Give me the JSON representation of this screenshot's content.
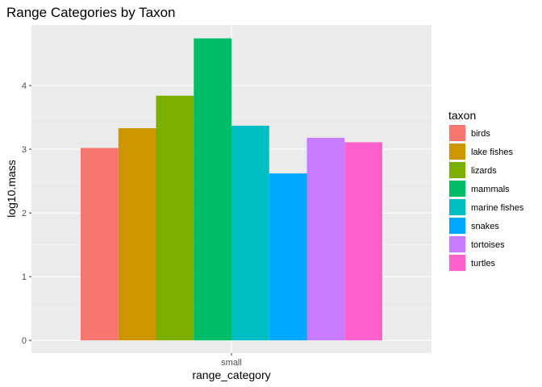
{
  "chart_data": {
    "type": "bar",
    "title": "Range Categories by Taxon",
    "xlabel": "range_category",
    "ylabel": "log10.mass",
    "categories": [
      "small"
    ],
    "ylim": [
      -0.2,
      4.95
    ],
    "yticks": [
      0,
      1,
      2,
      3,
      4
    ],
    "grid": true,
    "legend": {
      "title": "taxon",
      "position": "right"
    },
    "series": [
      {
        "name": "birds",
        "values": [
          3.02
        ],
        "color": "#F8766D"
      },
      {
        "name": "lake fishes",
        "values": [
          3.33
        ],
        "color": "#CD9600"
      },
      {
        "name": "lizards",
        "values": [
          3.84
        ],
        "color": "#7CAE00"
      },
      {
        "name": "mammals",
        "values": [
          4.74
        ],
        "color": "#00BE67"
      },
      {
        "name": "marine fishes",
        "values": [
          3.37
        ],
        "color": "#00BFC4"
      },
      {
        "name": "snakes",
        "values": [
          2.62
        ],
        "color": "#00A9FF"
      },
      {
        "name": "tortoises",
        "values": [
          3.18
        ],
        "color": "#C77CFF"
      },
      {
        "name": "turtles",
        "values": [
          3.11
        ],
        "color": "#FF61CC"
      }
    ]
  }
}
